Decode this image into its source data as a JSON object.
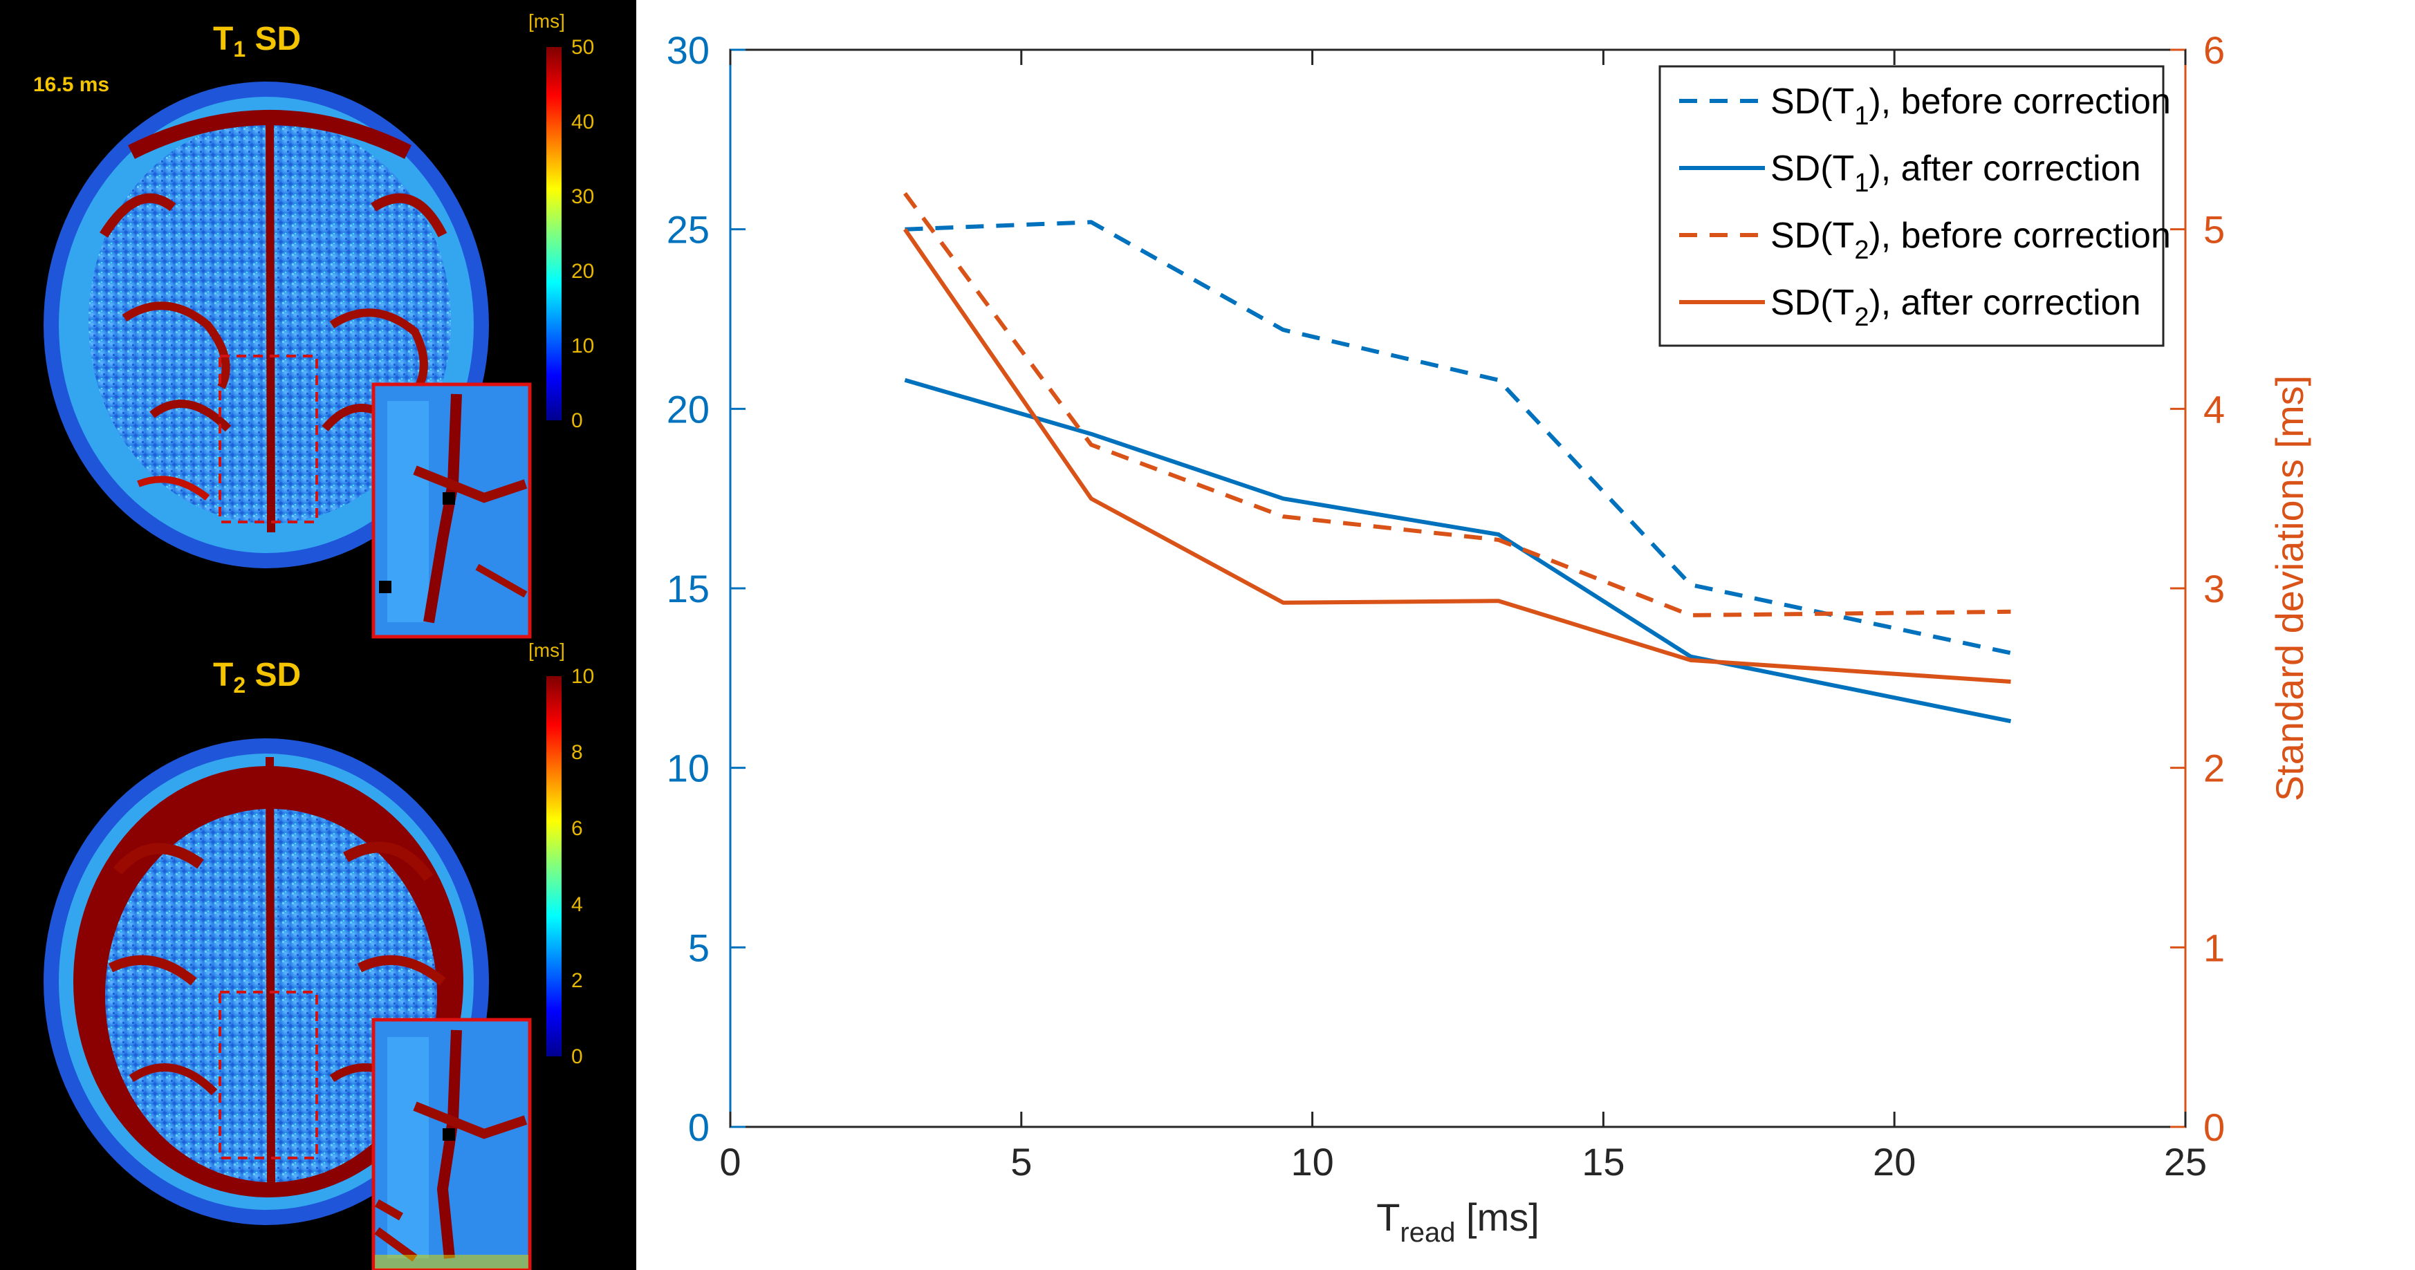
{
  "colors": {
    "t1": "#0072BD",
    "t2": "#D95319",
    "label_yellow": "#f5c400"
  },
  "maps": {
    "t1": {
      "title_main": "T",
      "title_sub": "1",
      "title_rest": " SD",
      "time_label": "16.5 ms",
      "unit": "[ms]",
      "ticks": [
        "50",
        "40",
        "30",
        "20",
        "10",
        "0"
      ]
    },
    "t2": {
      "title_main": "T",
      "title_sub": "2",
      "title_rest": " SD",
      "unit": "[ms]",
      "ticks": [
        "10",
        "8",
        "6",
        "4",
        "2",
        "0"
      ]
    }
  },
  "chart_data": {
    "type": "line",
    "xlabel_main": "T",
    "xlabel_sub": "read",
    "xlabel_rest": " [ms]",
    "ylabel_right": "Standard deviations [ms]",
    "xlim": [
      0,
      25
    ],
    "ylim_left": [
      0,
      30
    ],
    "ylim_right": [
      0,
      6
    ],
    "xticks": [
      "0",
      "5",
      "10",
      "15",
      "20",
      "25"
    ],
    "yticks_left": [
      "0",
      "5",
      "10",
      "15",
      "20",
      "25",
      "30"
    ],
    "yticks_right": [
      "0",
      "1",
      "2",
      "3",
      "4",
      "5",
      "6"
    ],
    "legend_position": "top-right",
    "series": [
      {
        "name_pre": "SD(T",
        "name_sub": "1",
        "name_post": "), before correction",
        "axis": "left",
        "color": "#0072BD",
        "dash": true,
        "x": [
          3,
          6.2,
          9.5,
          13.2,
          16.5,
          22
        ],
        "y": [
          25.0,
          25.2,
          22.2,
          20.8,
          15.1,
          13.2
        ]
      },
      {
        "name_pre": "SD(T",
        "name_sub": "1",
        "name_post": "), after correction",
        "axis": "left",
        "color": "#0072BD",
        "dash": false,
        "x": [
          3,
          6.2,
          9.5,
          13.2,
          16.5,
          22
        ],
        "y": [
          20.8,
          19.3,
          17.5,
          16.5,
          13.1,
          11.3
        ]
      },
      {
        "name_pre": "SD(T",
        "name_sub": "2",
        "name_post": "), before correction",
        "axis": "right",
        "color": "#D95319",
        "dash": true,
        "x": [
          3,
          6.2,
          9.5,
          13.2,
          16.5,
          22
        ],
        "y": [
          5.2,
          3.8,
          3.4,
          3.27,
          2.85,
          2.87
        ]
      },
      {
        "name_pre": "SD(T",
        "name_sub": "2",
        "name_post": "), after correction",
        "axis": "right",
        "color": "#D95319",
        "dash": false,
        "x": [
          3,
          6.2,
          9.5,
          13.2,
          16.5,
          22
        ],
        "y": [
          5.0,
          3.5,
          2.92,
          2.93,
          2.6,
          2.48
        ]
      }
    ]
  }
}
